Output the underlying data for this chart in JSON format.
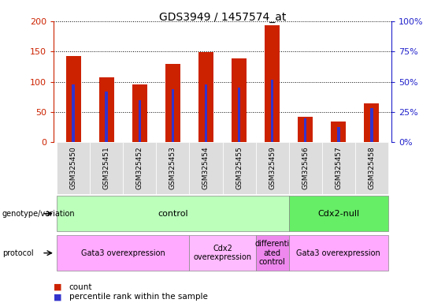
{
  "title": "GDS3949 / 1457574_at",
  "samples": [
    "GSM325450",
    "GSM325451",
    "GSM325452",
    "GSM325453",
    "GSM325454",
    "GSM325455",
    "GSM325459",
    "GSM325456",
    "GSM325457",
    "GSM325458"
  ],
  "counts": [
    143,
    107,
    96,
    129,
    149,
    138,
    193,
    42,
    34,
    65
  ],
  "percentile_ranks": [
    48,
    42,
    35,
    44,
    48,
    45,
    52,
    20,
    13,
    28
  ],
  "bar_color": "#cc2200",
  "percentile_color": "#3333cc",
  "genotype_groups": [
    {
      "label": "control",
      "start": 0,
      "end": 7,
      "color": "#bbffbb"
    },
    {
      "label": "Cdx2-null",
      "start": 7,
      "end": 10,
      "color": "#66ee66"
    }
  ],
  "protocol_groups": [
    {
      "label": "Gata3 overexpression",
      "start": 0,
      "end": 4,
      "color": "#ffaaff"
    },
    {
      "label": "Cdx2\noverexpression",
      "start": 4,
      "end": 6,
      "color": "#ffbbff"
    },
    {
      "label": "differenti\nated\ncontrol",
      "start": 6,
      "end": 7,
      "color": "#ee88ee"
    },
    {
      "label": "Gata3 overexpression",
      "start": 7,
      "end": 10,
      "color": "#ffaaff"
    }
  ],
  "ylim_left": [
    0,
    200
  ],
  "ylim_right": [
    0,
    100
  ],
  "yticks_left": [
    0,
    50,
    100,
    150,
    200
  ],
  "yticks_right": [
    0,
    25,
    50,
    75,
    100
  ],
  "ytick_labels_right": [
    "0%",
    "25%",
    "50%",
    "75%",
    "100%"
  ],
  "left_axis_color": "#cc2200",
  "right_axis_color": "#2222cc"
}
